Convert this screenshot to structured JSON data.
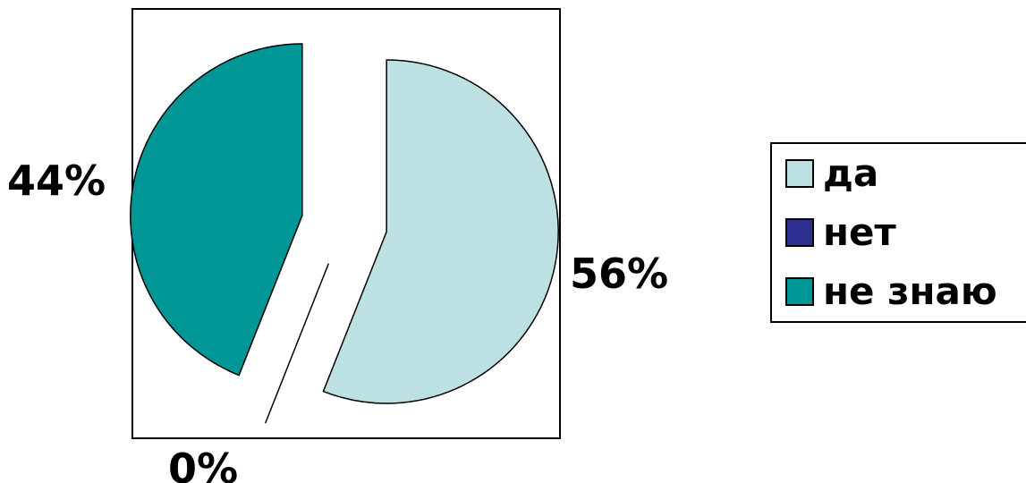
{
  "chart_data": {
    "type": "pie",
    "categories": [
      "да",
      "нет",
      "не знаю"
    ],
    "values": [
      56,
      0,
      44
    ],
    "data_labels": [
      "56%",
      "0%",
      "44%"
    ],
    "colors": [
      "#bde0e3",
      "#2e3192",
      "#009695"
    ],
    "legend": {
      "placement": "right",
      "entries": [
        "да",
        "нет",
        "не знаю"
      ]
    },
    "exploded": true
  }
}
